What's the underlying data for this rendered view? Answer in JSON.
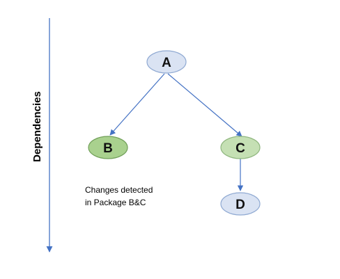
{
  "axis": {
    "label": "Dependencies"
  },
  "nodes": {
    "a": {
      "label": "A",
      "fill": "#dae3f3",
      "stroke": "#8fa9d2"
    },
    "b": {
      "label": "B",
      "fill": "#a9d18e",
      "stroke": "#6f9e57"
    },
    "c": {
      "label": "C",
      "fill": "#c5e0b4",
      "stroke": "#8fb67e"
    },
    "d": {
      "label": "D",
      "fill": "#dae3f3",
      "stroke": "#8fa9d2"
    }
  },
  "note": {
    "line1": "Changes detected",
    "line2": "in Package B&C"
  },
  "colors": {
    "arrow": "#4472c4"
  }
}
